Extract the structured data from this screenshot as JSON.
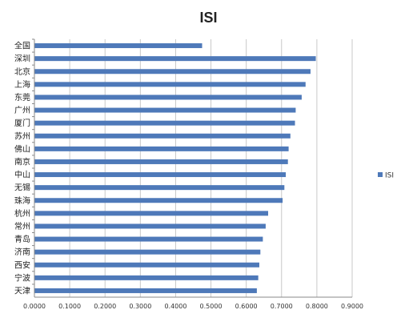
{
  "chart_data": {
    "type": "bar",
    "orientation": "horizontal",
    "title": "ISI",
    "xlabel": "",
    "ylabel": "",
    "xlim": [
      0,
      0.9
    ],
    "x_ticks": [
      "0.0000",
      "0.1000",
      "0.2000",
      "0.3000",
      "0.4000",
      "0.5000",
      "0.6000",
      "0.7000",
      "0.8000",
      "0.9000"
    ],
    "grid": true,
    "legend_position": "right",
    "bar_color": "#4E79B9",
    "categories": [
      "全国",
      "深圳",
      "北京",
      "上海",
      "东莞",
      "广州",
      "厦门",
      "苏州",
      "佛山",
      "南京",
      "中山",
      "无锡",
      "珠海",
      "杭州",
      "常州",
      "青岛",
      "济南",
      "西安",
      "宁波",
      "天津"
    ],
    "series": [
      {
        "name": "ISI",
        "values": [
          0.475,
          0.797,
          0.782,
          0.768,
          0.757,
          0.74,
          0.738,
          0.725,
          0.72,
          0.718,
          0.712,
          0.708,
          0.703,
          0.662,
          0.655,
          0.647,
          0.64,
          0.637,
          0.634,
          0.63
        ]
      }
    ]
  }
}
